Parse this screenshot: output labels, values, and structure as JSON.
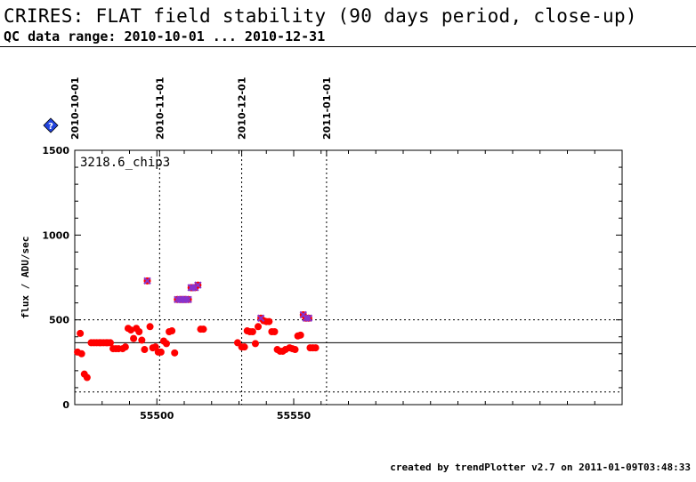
{
  "title": "CRIRES: FLAT field stability (90 days period, close-up)",
  "subtitle": "QC data range: 2010-10-01 ... 2010-12-31",
  "footer": "created by trendPlotter v2.7 on 2011-01-09T03:48:33",
  "badge": {
    "icon": "help-diamond-icon",
    "label": "?",
    "color": "#2244dd"
  },
  "chart_data": {
    "type": "scatter",
    "series_label": "3218.6_chip3",
    "ylabel": "flux / ADU/sec",
    "xlim": [
      55470,
      55670
    ],
    "ylim": [
      0,
      1500
    ],
    "x_ticks": [
      55500,
      55550
    ],
    "y_ticks": [
      0,
      500,
      1000,
      1500
    ],
    "date_markers": [
      {
        "label": "2010-10-01",
        "x": 55470
      },
      {
        "label": "2010-11-01",
        "x": 55501
      },
      {
        "label": "2010-12-01",
        "x": 55531
      },
      {
        "label": "2011-01-01",
        "x": 55562
      }
    ],
    "reference_lines": {
      "mean": 365,
      "upper": 500,
      "lower": 75
    },
    "colors": {
      "point": "#ff0000",
      "outlier": "#8833cc"
    },
    "points": [
      [
        55471.0,
        310
      ],
      [
        55472.0,
        420
      ],
      [
        55472.5,
        300
      ],
      [
        55473.5,
        180
      ],
      [
        55474.5,
        160
      ],
      [
        55476.0,
        365
      ],
      [
        55477.0,
        365
      ],
      [
        55478.0,
        365
      ],
      [
        55479.0,
        365
      ],
      [
        55479.5,
        365
      ],
      [
        55480.5,
        365
      ],
      [
        55481.5,
        365
      ],
      [
        55482.0,
        365
      ],
      [
        55483.0,
        365
      ],
      [
        55484.0,
        330
      ],
      [
        55485.0,
        330
      ],
      [
        55486.0,
        330
      ],
      [
        55487.5,
        330
      ],
      [
        55488.5,
        340
      ],
      [
        55489.5,
        450
      ],
      [
        55490.5,
        440
      ],
      [
        55491.5,
        390
      ],
      [
        55492.5,
        450
      ],
      [
        55493.5,
        430
      ],
      [
        55494.5,
        380
      ],
      [
        55495.5,
        325
      ],
      [
        55496.5,
        730
      ],
      [
        55497.5,
        460
      ],
      [
        55498.5,
        335
      ],
      [
        55499.5,
        340
      ],
      [
        55500.5,
        310
      ],
      [
        55501.5,
        310
      ],
      [
        55502.5,
        375
      ],
      [
        55503.5,
        360
      ],
      [
        55504.5,
        430
      ],
      [
        55505.5,
        435
      ],
      [
        55506.5,
        305
      ],
      [
        55507.5,
        620
      ],
      [
        55508.5,
        620
      ],
      [
        55509.0,
        620
      ],
      [
        55510.0,
        620
      ],
      [
        55510.5,
        620
      ],
      [
        55511.5,
        620
      ],
      [
        55512.5,
        690
      ],
      [
        55513.0,
        690
      ],
      [
        55514.0,
        690
      ],
      [
        55515.0,
        705
      ],
      [
        55516.0,
        445
      ],
      [
        55517.0,
        445
      ],
      [
        55529.5,
        365
      ],
      [
        55531.0,
        340
      ],
      [
        55532.0,
        340
      ],
      [
        55533.0,
        435
      ],
      [
        55534.0,
        430
      ],
      [
        55535.0,
        430
      ],
      [
        55536.0,
        360
      ],
      [
        55537.0,
        460
      ],
      [
        55538.0,
        510
      ],
      [
        55539.0,
        495
      ],
      [
        55540.0,
        490
      ],
      [
        55541.0,
        490
      ],
      [
        55542.0,
        430
      ],
      [
        55543.0,
        430
      ],
      [
        55544.0,
        325
      ],
      [
        55545.0,
        315
      ],
      [
        55546.0,
        315
      ],
      [
        55547.0,
        325
      ],
      [
        55548.5,
        335
      ],
      [
        55549.5,
        330
      ],
      [
        55550.5,
        325
      ],
      [
        55551.5,
        405
      ],
      [
        55552.5,
        410
      ],
      [
        55553.5,
        530
      ],
      [
        55554.5,
        510
      ],
      [
        55555.5,
        510
      ],
      [
        55556.0,
        335
      ],
      [
        55557.0,
        335
      ],
      [
        55558.0,
        335
      ]
    ],
    "outliers": [
      [
        55496.5,
        730
      ],
      [
        55507.5,
        620
      ],
      [
        55508.5,
        620
      ],
      [
        55509.0,
        620
      ],
      [
        55510.0,
        620
      ],
      [
        55510.5,
        620
      ],
      [
        55511.5,
        620
      ],
      [
        55512.5,
        690
      ],
      [
        55513.0,
        690
      ],
      [
        55514.0,
        690
      ],
      [
        55515.0,
        705
      ],
      [
        55538.0,
        510
      ],
      [
        55553.5,
        530
      ],
      [
        55554.5,
        510
      ],
      [
        55555.5,
        510
      ]
    ]
  }
}
